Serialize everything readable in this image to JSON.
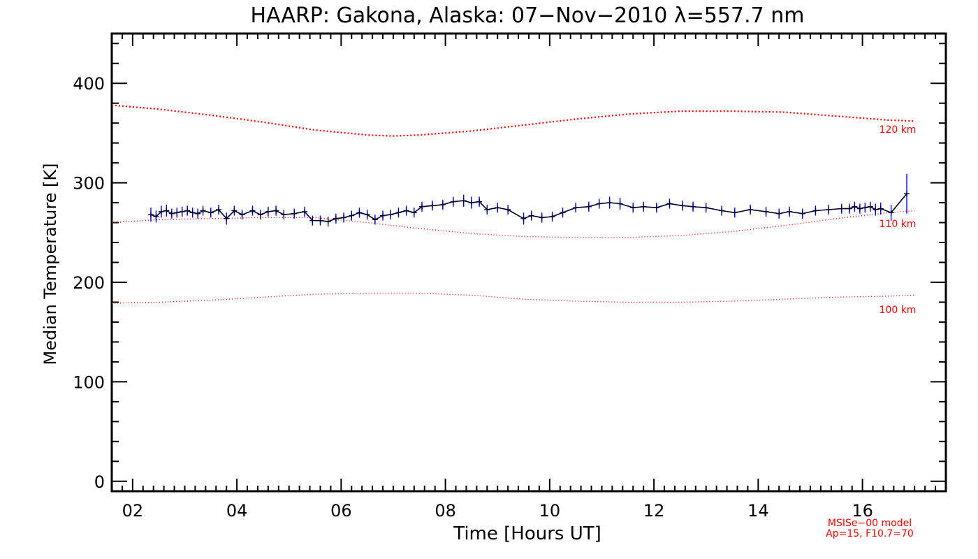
{
  "chart_data": {
    "type": "line",
    "title": "HAARP: Gakona,  Alaska: 07−Nov−2010 λ=557.7 nm",
    "xlabel": "Time [Hours UT]",
    "ylabel": "Median Temperature [K]",
    "xlim": [
      1.6,
      17.6
    ],
    "ylim": [
      -10,
      450
    ],
    "xticks": [
      {
        "value": 2,
        "label": "02"
      },
      {
        "value": 4,
        "label": "04"
      },
      {
        "value": 6,
        "label": "06"
      },
      {
        "value": 8,
        "label": "08"
      },
      {
        "value": 10,
        "label": "10"
      },
      {
        "value": 12,
        "label": "12"
      },
      {
        "value": 14,
        "label": "14"
      },
      {
        "value": 16,
        "label": "16"
      }
    ],
    "yticks": [
      {
        "value": 0,
        "label": "0"
      },
      {
        "value": 100,
        "label": "100"
      },
      {
        "value": 200,
        "label": "200"
      },
      {
        "value": 300,
        "label": "300"
      },
      {
        "value": 400,
        "label": "400"
      }
    ],
    "grid": false,
    "colors": {
      "measured": "#000033",
      "error_bars": "#0000ff",
      "model": "#ff0000",
      "axes": "#000000"
    },
    "series": [
      {
        "name": "measured",
        "x": [
          2.35,
          2.45,
          2.55,
          2.65,
          2.75,
          2.85,
          2.95,
          3.05,
          3.15,
          3.25,
          3.35,
          3.5,
          3.65,
          3.8,
          3.95,
          4.1,
          4.3,
          4.45,
          4.6,
          4.75,
          4.9,
          5.1,
          5.3,
          5.45,
          5.6,
          5.75,
          5.9,
          6.05,
          6.2,
          6.35,
          6.5,
          6.65,
          6.8,
          6.95,
          7.1,
          7.25,
          7.4,
          7.55,
          7.75,
          7.95,
          8.15,
          8.35,
          8.5,
          8.65,
          8.8,
          9.0,
          9.2,
          9.5,
          9.65,
          9.85,
          10.05,
          10.25,
          10.5,
          10.75,
          10.95,
          11.15,
          11.35,
          11.6,
          11.8,
          12.05,
          12.3,
          12.55,
          12.75,
          13.0,
          13.3,
          13.55,
          13.85,
          14.15,
          14.4,
          14.6,
          14.85,
          15.1,
          15.35,
          15.6,
          15.75,
          15.85,
          15.95,
          16.05,
          16.15,
          16.25,
          16.35,
          16.55,
          16.85
        ],
        "y": [
          268,
          266,
          271,
          272,
          269,
          270,
          271,
          272,
          270,
          269,
          272,
          270,
          273,
          264,
          272,
          268,
          272,
          268,
          271,
          272,
          268,
          269,
          271,
          262,
          262,
          261,
          264,
          265,
          267,
          270,
          268,
          263,
          267,
          268,
          270,
          272,
          270,
          276,
          277,
          278,
          281,
          282,
          280,
          281,
          273,
          275,
          273,
          264,
          267,
          265,
          266,
          270,
          275,
          276,
          279,
          280,
          279,
          275,
          276,
          275,
          279,
          277,
          276,
          275,
          272,
          270,
          273,
          271,
          269,
          271,
          269,
          272,
          273,
          274,
          274,
          276,
          274,
          275,
          276,
          273,
          274,
          270,
          289
        ],
        "error": [
          7,
          6,
          6,
          6,
          5,
          5,
          5,
          5,
          5,
          5,
          5,
          5,
          5,
          6,
          5,
          5,
          5,
          5,
          5,
          5,
          5,
          5,
          5,
          5,
          5,
          5,
          5,
          5,
          5,
          5,
          5,
          5,
          5,
          5,
          5,
          5,
          5,
          5,
          5,
          5,
          5,
          6,
          6,
          5,
          5,
          5,
          5,
          6,
          5,
          5,
          5,
          5,
          5,
          5,
          5,
          6,
          6,
          5,
          5,
          5,
          5,
          5,
          5,
          5,
          5,
          5,
          5,
          5,
          5,
          5,
          5,
          5,
          5,
          5,
          5,
          5,
          5,
          5,
          5,
          6,
          6,
          8,
          20
        ]
      },
      {
        "name": "120 km",
        "x": [
          1.6,
          2.5,
          3.5,
          4.5,
          5.5,
          6.5,
          7.0,
          7.5,
          8.5,
          9.5,
          10.5,
          11.5,
          12.5,
          13.5,
          14.5,
          15.5,
          16.5,
          17.0
        ],
        "y": [
          378,
          374,
          368,
          361,
          353,
          348,
          347,
          348,
          352,
          358,
          364,
          369,
          372,
          372,
          371,
          367,
          363,
          362
        ]
      },
      {
        "name": "110 km",
        "x": [
          1.6,
          2.5,
          3.5,
          4.5,
          5.5,
          6.5,
          7.5,
          8.5,
          9.5,
          10.5,
          11.5,
          12.5,
          13.5,
          14.5,
          15.5,
          16.5,
          17.0
        ],
        "y": [
          260,
          263,
          264,
          265,
          265,
          260,
          254,
          249,
          246,
          245,
          245,
          247,
          251,
          257,
          264,
          270,
          272
        ]
      },
      {
        "name": "100 km",
        "x": [
          1.6,
          2.5,
          3.5,
          4.5,
          5.5,
          6.5,
          7.5,
          8.5,
          9.5,
          10.5,
          11.5,
          12.5,
          13.5,
          14.5,
          15.5,
          16.5,
          17.0
        ],
        "y": [
          179,
          180,
          182,
          185,
          188,
          189,
          189,
          187,
          183,
          181,
          180,
          180,
          181,
          183,
          185,
          186,
          187
        ]
      }
    ],
    "annotations": [
      "120 km",
      "110 km",
      "100 km",
      "MSISe−00 model",
      "Ap=15, F10.7=70"
    ]
  }
}
